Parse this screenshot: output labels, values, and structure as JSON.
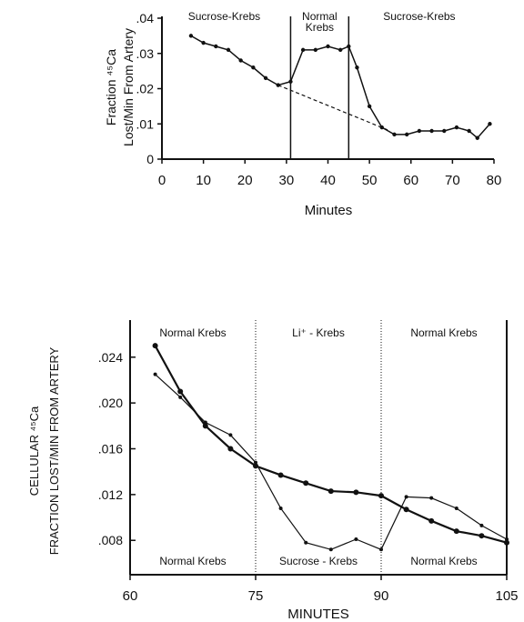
{
  "chart_data": [
    {
      "type": "line",
      "xlabel": "Minutes",
      "ylabel_line1": "Fraction ⁴⁵Ca",
      "ylabel_line2": "Lost/Min From Artery",
      "xlim": [
        0,
        80
      ],
      "ylim": [
        0,
        0.04
      ],
      "xticks": [
        0,
        10,
        20,
        30,
        40,
        50,
        60,
        70,
        80
      ],
      "yticks": [
        0,
        0.01,
        0.02,
        0.03,
        0.04
      ],
      "xtick_labels": [
        "0",
        "10",
        "20",
        "30",
        "40",
        "50",
        "60",
        "70",
        "80"
      ],
      "ytick_labels": [
        "0",
        ".01",
        ".02",
        ".03",
        ".04"
      ],
      "dividers": [
        31,
        45
      ],
      "regions": [
        {
          "label": "Sucrose-Krebs",
          "x": 15
        },
        {
          "label": "Normal",
          "x": 38
        },
        {
          "label": "Krebs",
          "x": 38
        },
        {
          "label": "Sucrose-Krebs",
          "x": 62
        }
      ],
      "series": [
        {
          "style": "solid",
          "x": [
            7,
            10,
            13,
            16,
            19,
            22,
            25,
            28,
            31,
            34,
            37,
            40,
            43,
            45,
            47,
            50,
            53,
            56,
            59,
            62,
            65,
            68,
            71,
            74,
            76,
            79
          ],
          "y": [
            0.035,
            0.033,
            0.032,
            0.031,
            0.028,
            0.026,
            0.023,
            0.021,
            0.022,
            0.031,
            0.031,
            0.032,
            0.031,
            0.032,
            0.026,
            0.015,
            0.009,
            0.007,
            0.007,
            0.008,
            0.008,
            0.008,
            0.009,
            0.008,
            0.006,
            0.01
          ]
        },
        {
          "style": "dashed",
          "x": [
            28,
            55
          ],
          "y": [
            0.021,
            0.008
          ]
        }
      ]
    },
    {
      "type": "line",
      "xlabel": "MINUTES",
      "ylabel_line1": "CELLULAR ⁴⁵Ca",
      "ylabel_line2": "FRACTION LOST/MIN FROM ARTERY",
      "xlim": [
        60,
        105
      ],
      "ylim": [
        0.005,
        0.027
      ],
      "xticks": [
        60,
        75,
        90,
        105
      ],
      "yticks": [
        0.008,
        0.012,
        0.016,
        0.02,
        0.024
      ],
      "xtick_labels": [
        "60",
        "75",
        "90",
        "105"
      ],
      "ytick_labels": [
        ".008",
        ".012",
        ".016",
        ".020",
        ".024"
      ],
      "dividers": [
        75,
        90
      ],
      "regions_top": [
        {
          "label": "Normal  Krebs",
          "x": 67.5
        },
        {
          "label": "Li⁺ - Krebs",
          "x": 82.5
        },
        {
          "label": "Normal  Krebs",
          "x": 97.5
        }
      ],
      "regions_bottom": [
        {
          "label": "Normal  Krebs",
          "x": 67.5
        },
        {
          "label": "Sucrose - Krebs",
          "x": 82.5
        },
        {
          "label": "Normal  Krebs",
          "x": 97.5
        }
      ],
      "series": [
        {
          "name": "",
          "style": "solid-thick",
          "x": [
            63,
            66,
            69,
            72,
            75,
            78,
            81,
            84,
            87,
            90,
            93,
            96,
            99,
            102,
            105
          ],
          "y": [
            0.025,
            0.021,
            0.018,
            0.016,
            0.0145,
            0.0137,
            0.013,
            0.0123,
            0.0122,
            0.0119,
            0.0107,
            0.0097,
            0.0088,
            0.0084,
            0.0078
          ]
        },
        {
          "name": "",
          "style": "solid-thin",
          "x": [
            63,
            66,
            69,
            72,
            75,
            78,
            81,
            84,
            87,
            90,
            93,
            96,
            99,
            102,
            105
          ],
          "y": [
            0.0225,
            0.0205,
            0.0183,
            0.0172,
            0.0148,
            0.0108,
            0.0078,
            0.0072,
            0.0081,
            0.0072,
            0.0118,
            0.0117,
            0.0108,
            0.0093,
            0.0081
          ]
        }
      ]
    }
  ]
}
